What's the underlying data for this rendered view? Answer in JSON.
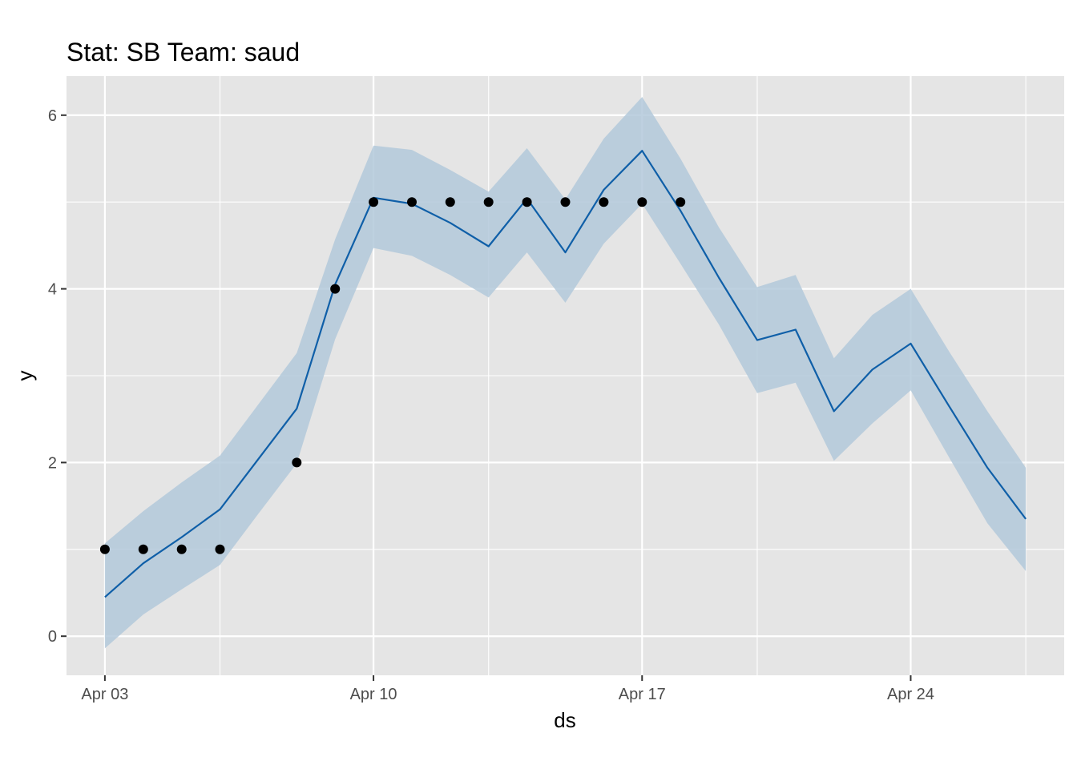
{
  "chart_data": {
    "type": "line",
    "title": "Stat: SB Team: saud",
    "xlabel": "ds",
    "ylabel": "y",
    "x_axis": {
      "kind": "date",
      "range": [
        "2019-04-02",
        "2019-04-28"
      ],
      "ticks": [
        {
          "date": "2019-04-03",
          "label": "Apr 03"
        },
        {
          "date": "2019-04-10",
          "label": "Apr 10"
        },
        {
          "date": "2019-04-17",
          "label": "Apr 17"
        },
        {
          "date": "2019-04-24",
          "label": "Apr 24"
        }
      ],
      "minor_ticks": [
        "2019-04-06",
        "2019-04-13",
        "2019-04-20",
        "2019-04-27"
      ]
    },
    "y_axis": {
      "range": [
        -0.45,
        6.45
      ],
      "ticks": [
        0,
        2,
        4,
        6
      ],
      "minor_ticks": [
        1,
        3,
        5
      ]
    },
    "grid": true,
    "colors": {
      "panel": "#e5e5e5",
      "grid": "#ffffff",
      "line": "#0f5fa8",
      "band": "#b3c9db",
      "points": "#000000",
      "tick_text": "#4d4d4d"
    },
    "forecast": {
      "x": [
        "2019-04-03",
        "2019-04-04",
        "2019-04-05",
        "2019-04-06",
        "2019-04-07",
        "2019-04-08",
        "2019-04-09",
        "2019-04-10",
        "2019-04-11",
        "2019-04-12",
        "2019-04-13",
        "2019-04-14",
        "2019-04-15",
        "2019-04-16",
        "2019-04-17",
        "2019-04-18",
        "2019-04-19",
        "2019-04-20",
        "2019-04-21",
        "2019-04-22",
        "2019-04-23",
        "2019-04-24",
        "2019-04-25",
        "2019-04-26",
        "2019-04-27"
      ],
      "yhat": [
        0.45,
        0.84,
        1.14,
        1.46,
        2.04,
        2.62,
        4.05,
        5.05,
        4.98,
        4.76,
        4.49,
        5.04,
        4.42,
        5.14,
        5.59,
        4.9,
        4.13,
        3.41,
        3.53,
        2.59,
        3.07,
        3.37,
        2.65,
        1.94,
        1.35
      ],
      "yhat_lower": [
        -0.14,
        0.25,
        0.54,
        0.82,
        1.41,
        1.99,
        3.42,
        4.47,
        4.38,
        4.16,
        3.9,
        4.42,
        3.84,
        4.52,
        4.98,
        4.29,
        3.59,
        2.8,
        2.92,
        2.02,
        2.45,
        2.83,
        2.06,
        1.3,
        0.75
      ],
      "yhat_upper": [
        1.07,
        1.44,
        1.77,
        2.08,
        2.67,
        3.26,
        4.57,
        5.65,
        5.6,
        5.37,
        5.12,
        5.62,
        5.03,
        5.73,
        6.21,
        5.5,
        4.71,
        4.02,
        4.16,
        3.2,
        3.7,
        4.0,
        3.28,
        2.59,
        1.94
      ]
    },
    "observed": {
      "x": [
        "2019-04-03",
        "2019-04-04",
        "2019-04-05",
        "2019-04-06",
        "2019-04-08",
        "2019-04-09",
        "2019-04-10",
        "2019-04-11",
        "2019-04-12",
        "2019-04-13",
        "2019-04-14",
        "2019-04-15",
        "2019-04-16",
        "2019-04-17",
        "2019-04-18"
      ],
      "y": [
        1,
        1,
        1,
        1,
        2,
        4,
        5,
        5,
        5,
        5,
        5,
        5,
        5,
        5,
        5
      ]
    }
  }
}
